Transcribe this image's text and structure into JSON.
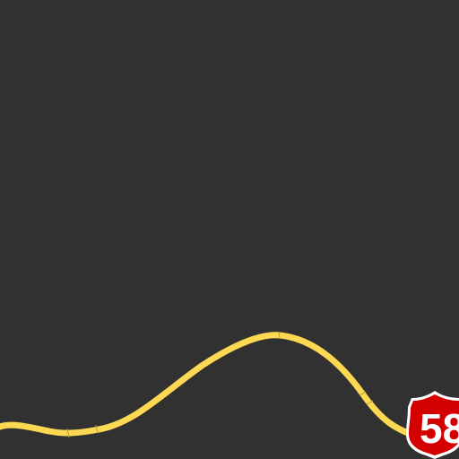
{
  "map": {
    "background_color": "#313131",
    "road_color": "#fcd853",
    "road_casing_color": "#e0bd3f",
    "shield": {
      "route_number": "58",
      "shield_type": "us-highway-shield",
      "fill_color": "#d40000",
      "border_color": "#ffffff",
      "text_color": "#ffffff"
    }
  }
}
